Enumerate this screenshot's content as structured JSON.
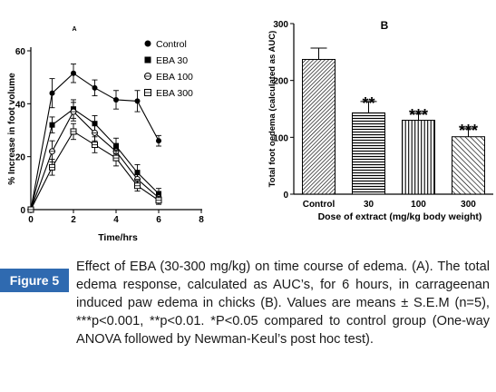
{
  "figure": {
    "label": "Figure 5",
    "caption": "Effect of EBA (30-300 mg/kg) on time course of edema. (A). The total edema response, calculated as AUC’s, for 6 hours, in carrageenan induced paw edema in chicks (B). Values are means ± S.E.M (n=5), ***p<0.001, **p<0.01. *P<0.05 compared to control group (One-way ANOVA followed by Newman-Keul’s post hoc test)."
  },
  "chart_data": [
    {
      "type": "line",
      "panel_label": "A",
      "xlabel": "Time/hrs",
      "ylabel": "% Increase in foot volume",
      "xlim": [
        0,
        8
      ],
      "ylim": [
        0,
        60
      ],
      "xticks": [
        "0",
        "2",
        "4",
        "6",
        "8"
      ],
      "yticks": [
        "0",
        "20",
        "40",
        "60"
      ],
      "x": [
        0,
        1,
        2,
        3,
        4,
        5,
        6
      ],
      "legend_position": "top-right",
      "series": [
        {
          "name": "Control",
          "marker": "circle-filled",
          "values": [
            0,
            44,
            51.5,
            46,
            41.5,
            41,
            26
          ],
          "errors": [
            0,
            5.5,
            3.5,
            3,
            3.5,
            4,
            2
          ]
        },
        {
          "name": "EBA 30",
          "marker": "square-filled",
          "values": [
            0,
            32,
            38,
            32.5,
            24,
            14,
            6
          ],
          "errors": [
            0,
            3,
            3.5,
            3,
            3,
            3,
            2
          ]
        },
        {
          "name": "EBA 100",
          "marker": "circle-open",
          "values": [
            0,
            22,
            37,
            29,
            22,
            11.5,
            4.5
          ],
          "errors": [
            0,
            4,
            3.5,
            3,
            3,
            2.5,
            2
          ]
        },
        {
          "name": "EBA 300",
          "marker": "square-open",
          "values": [
            0,
            16,
            29.5,
            24.5,
            19.5,
            9,
            3.5
          ],
          "errors": [
            0,
            3,
            3,
            3,
            3,
            2,
            1.5
          ]
        }
      ]
    },
    {
      "type": "bar",
      "panel_label": "B",
      "xlabel": "Dose of extract (mg/kg body weight)",
      "ylabel": "Total foot oedema (calculated as AUC)",
      "ylim": [
        0,
        300
      ],
      "yticks": [
        "0",
        "100",
        "200",
        "300"
      ],
      "categories": [
        "Control",
        "30",
        "100",
        "300"
      ],
      "values": [
        237,
        143,
        130,
        101
      ],
      "errors": [
        20,
        20,
        12,
        14
      ],
      "significance": [
        "",
        "**",
        "***",
        "***"
      ]
    }
  ]
}
